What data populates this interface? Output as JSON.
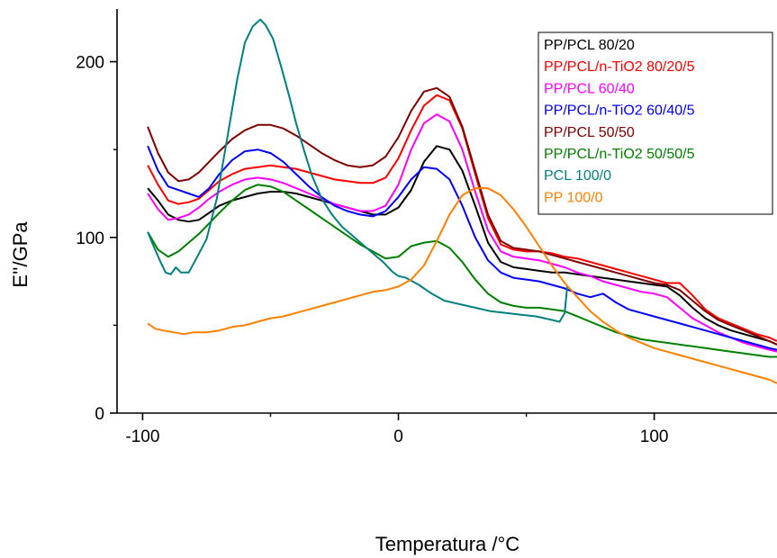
{
  "chart_data": {
    "type": "line",
    "xlabel": "Temperatura /°C",
    "ylabel": "E''/GPa",
    "xlim": [
      -110,
      148
    ],
    "ylim": [
      0,
      230
    ],
    "x_ticks": [
      -100,
      0,
      100
    ],
    "y_ticks": [
      0,
      100,
      200
    ],
    "grid": false,
    "legend_position": "top-right",
    "series": [
      {
        "name": "PP/PCL 80/20",
        "color": "#000000",
        "x": [
          -98,
          -94,
          -90,
          -86,
          -82,
          -78,
          -74,
          -70,
          -65,
          -60,
          -55,
          -50,
          -45,
          -40,
          -35,
          -30,
          -25,
          -20,
          -15,
          -10,
          -5,
          0,
          5,
          10,
          15,
          20,
          25,
          30,
          35,
          40,
          45,
          50,
          55,
          60,
          65,
          70,
          75,
          80,
          85,
          90,
          95,
          100,
          105,
          110,
          115,
          120,
          125,
          130,
          135,
          140,
          145,
          148
        ],
        "y": [
          128,
          121,
          113,
          110,
          109,
          110,
          114,
          118,
          121,
          123,
          125,
          126,
          126,
          125,
          123,
          121,
          119,
          117,
          115,
          113,
          113,
          117,
          127,
          143,
          152,
          150,
          138,
          118,
          97,
          86,
          83,
          82,
          81,
          80,
          80,
          79,
          78,
          77,
          76,
          75,
          74,
          73,
          72,
          67,
          60,
          54,
          50,
          47,
          45,
          43,
          41,
          39
        ]
      },
      {
        "name": "PP/PCL/n-TiO2 80/20/5",
        "color": "#ff0000",
        "x": [
          -98,
          -94,
          -90,
          -86,
          -82,
          -78,
          -74,
          -70,
          -65,
          -60,
          -55,
          -50,
          -45,
          -40,
          -35,
          -30,
          -25,
          -20,
          -15,
          -10,
          -5,
          0,
          5,
          10,
          15,
          20,
          25,
          30,
          35,
          40,
          45,
          50,
          55,
          60,
          65,
          70,
          75,
          80,
          85,
          90,
          95,
          100,
          105,
          110,
          115,
          120,
          125,
          130,
          135,
          140,
          145,
          148
        ],
        "y": [
          141,
          130,
          121,
          119,
          120,
          122,
          127,
          132,
          136,
          139,
          140,
          141,
          140,
          139,
          137,
          135,
          133,
          132,
          131,
          131,
          134,
          145,
          161,
          175,
          181,
          178,
          162,
          136,
          111,
          96,
          93,
          92,
          92,
          91,
          89,
          88,
          86,
          84,
          82,
          80,
          78,
          76,
          74,
          74,
          67,
          59,
          54,
          51,
          48,
          45,
          43,
          41
        ]
      },
      {
        "name": "PP/PCL 60/40",
        "color": "#ff00ff",
        "x": [
          -98,
          -94,
          -90,
          -86,
          -82,
          -78,
          -74,
          -70,
          -65,
          -60,
          -55,
          -50,
          -45,
          -40,
          -35,
          -30,
          -25,
          -20,
          -15,
          -10,
          -5,
          0,
          5,
          10,
          15,
          20,
          25,
          30,
          35,
          40,
          45,
          50,
          55,
          60,
          65,
          70,
          75,
          80,
          85,
          90,
          95,
          100,
          105,
          110,
          115,
          120,
          125,
          130,
          135,
          140,
          145,
          148
        ],
        "y": [
          125,
          116,
          110,
          111,
          113,
          117,
          122,
          126,
          130,
          133,
          134,
          133,
          131,
          128,
          125,
          122,
          119,
          117,
          115,
          115,
          118,
          130,
          150,
          165,
          170,
          166,
          150,
          126,
          104,
          92,
          89,
          88,
          87,
          85,
          83,
          80,
          78,
          75,
          73,
          71,
          69,
          68,
          66,
          60,
          54,
          50,
          46,
          43,
          40,
          38,
          36,
          35
        ]
      },
      {
        "name": "PP/PCL/n-TiO2 60/40/5",
        "color": "#0000ff",
        "x": [
          -98,
          -94,
          -90,
          -86,
          -82,
          -78,
          -74,
          -70,
          -65,
          -60,
          -55,
          -50,
          -45,
          -40,
          -35,
          -30,
          -25,
          -20,
          -15,
          -10,
          -5,
          0,
          5,
          10,
          15,
          20,
          25,
          30,
          35,
          40,
          45,
          50,
          55,
          60,
          65,
          70,
          75,
          80,
          85,
          90,
          95,
          100,
          105,
          110,
          115,
          120,
          125,
          130,
          135,
          140,
          145,
          148
        ],
        "y": [
          152,
          138,
          129,
          127,
          125,
          123,
          128,
          136,
          144,
          149,
          150,
          148,
          143,
          136,
          129,
          123,
          118,
          115,
          113,
          112,
          115,
          123,
          133,
          140,
          139,
          133,
          118,
          100,
          87,
          80,
          77,
          76,
          75,
          73,
          71,
          68,
          66,
          68,
          63,
          59,
          57,
          55,
          53,
          51,
          49,
          47,
          45,
          43,
          41,
          39,
          37,
          36
        ]
      },
      {
        "name": "PP/PCL 50/50",
        "color": "#800000",
        "x": [
          -98,
          -94,
          -90,
          -86,
          -82,
          -78,
          -74,
          -70,
          -65,
          -60,
          -55,
          -50,
          -45,
          -40,
          -35,
          -30,
          -25,
          -20,
          -15,
          -10,
          -5,
          0,
          5,
          10,
          15,
          20,
          25,
          30,
          35,
          40,
          45,
          50,
          55,
          60,
          65,
          70,
          75,
          80,
          85,
          90,
          95,
          100,
          105,
          110,
          115,
          120,
          125,
          130,
          135,
          140,
          145,
          148
        ],
        "y": [
          163,
          148,
          137,
          132,
          133,
          137,
          143,
          149,
          156,
          161,
          164,
          164,
          162,
          158,
          153,
          148,
          144,
          141,
          140,
          141,
          146,
          157,
          172,
          183,
          185,
          180,
          163,
          138,
          113,
          98,
          94,
          93,
          92,
          90,
          88,
          86,
          84,
          82,
          80,
          78,
          76,
          74,
          73,
          70,
          64,
          58,
          53,
          50,
          47,
          44,
          41,
          39
        ]
      },
      {
        "name": "PP/PCL/n-TiO2 50/50/5",
        "color": "#008000",
        "x": [
          -98,
          -94,
          -90,
          -86,
          -82,
          -78,
          -74,
          -70,
          -65,
          -60,
          -55,
          -50,
          -45,
          -40,
          -35,
          -30,
          -25,
          -20,
          -15,
          -10,
          -5,
          0,
          5,
          10,
          15,
          20,
          25,
          30,
          35,
          40,
          45,
          50,
          55,
          60,
          65,
          70,
          75,
          80,
          85,
          90,
          95,
          100,
          105,
          110,
          115,
          120,
          125,
          130,
          135,
          140,
          145,
          148
        ],
        "y": [
          103,
          93,
          89,
          92,
          97,
          102,
          108,
          114,
          121,
          127,
          130,
          129,
          126,
          121,
          116,
          111,
          106,
          101,
          96,
          92,
          88,
          89,
          95,
          97,
          98,
          94,
          86,
          76,
          68,
          63,
          61,
          60,
          60,
          59,
          58,
          55,
          52,
          49,
          46,
          44,
          42,
          41,
          40,
          39,
          38,
          37,
          36,
          35,
          34,
          33,
          32,
          32
        ]
      },
      {
        "name": "PCL 100/0",
        "color": "#008080",
        "x": [
          -98,
          -96,
          -93,
          -91,
          -89,
          -87,
          -85,
          -82,
          -79,
          -75,
          -71,
          -67,
          -63,
          -60,
          -57,
          -54,
          -52,
          -49,
          -46,
          -43,
          -40,
          -37,
          -34,
          -30,
          -26,
          -22,
          -18,
          -14,
          -10,
          -6,
          -2,
          0,
          3,
          8,
          13,
          18,
          24,
          30,
          36,
          42,
          48,
          54,
          60,
          63,
          65,
          66
        ],
        "y": [
          103,
          96,
          86,
          80,
          79,
          83,
          80,
          80,
          88,
          99,
          122,
          156,
          190,
          211,
          220,
          224,
          221,
          213,
          198,
          182,
          165,
          150,
          136,
          122,
          113,
          106,
          101,
          96,
          91,
          86,
          80,
          78,
          77,
          73,
          68,
          64,
          62,
          60,
          58,
          57,
          56,
          55,
          53,
          52,
          57,
          72
        ]
      },
      {
        "name": "PP 100/0",
        "color": "#ff8000",
        "x": [
          -98,
          -95,
          -92,
          -88,
          -84,
          -80,
          -75,
          -70,
          -65,
          -60,
          -55,
          -50,
          -45,
          -40,
          -35,
          -30,
          -25,
          -20,
          -15,
          -10,
          -5,
          0,
          5,
          10,
          15,
          20,
          25,
          30,
          35,
          40,
          45,
          50,
          55,
          60,
          65,
          70,
          75,
          80,
          85,
          90,
          95,
          100,
          105,
          110,
          115,
          120,
          125,
          130,
          135,
          140,
          145,
          148
        ],
        "y": [
          51,
          48,
          47,
          46,
          45,
          46,
          46,
          47,
          49,
          50,
          52,
          54,
          55,
          57,
          59,
          61,
          63,
          65,
          67,
          69,
          70,
          72,
          76,
          84,
          98,
          113,
          124,
          128,
          128,
          124,
          116,
          106,
          95,
          84,
          74,
          66,
          58,
          52,
          47,
          43,
          40,
          37,
          35,
          33,
          31,
          29,
          27,
          25,
          23,
          21,
          19,
          17
        ]
      }
    ]
  }
}
